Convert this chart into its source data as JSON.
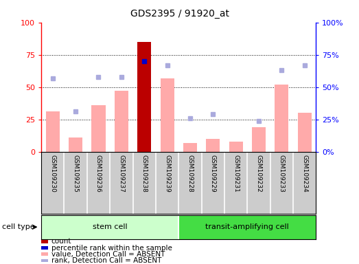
{
  "title": "GDS2395 / 91920_at",
  "samples": [
    "GSM109230",
    "GSM109235",
    "GSM109236",
    "GSM109237",
    "GSM109238",
    "GSM109239",
    "GSM109228",
    "GSM109229",
    "GSM109231",
    "GSM109232",
    "GSM109233",
    "GSM109234"
  ],
  "cell_groups": [
    {
      "label": "stem cell",
      "start": 0,
      "end": 6,
      "color": "#ccffcc"
    },
    {
      "label": "transit-amplifying cell",
      "start": 6,
      "end": 12,
      "color": "#44dd44"
    }
  ],
  "bar_values": [
    31,
    11,
    36,
    47,
    85,
    57,
    7,
    10,
    8,
    19,
    52,
    30
  ],
  "bar_colors": [
    "#ffaaaa",
    "#ffaaaa",
    "#ffaaaa",
    "#ffaaaa",
    "#bb0000",
    "#ffaaaa",
    "#ffaaaa",
    "#ffaaaa",
    "#ffaaaa",
    "#ffaaaa",
    "#ffaaaa",
    "#ffaaaa"
  ],
  "rank_dots": [
    57,
    31,
    58,
    58,
    70,
    67,
    26,
    29,
    null,
    24,
    63,
    67
  ],
  "rank_dot_color_present": "#0000cc",
  "rank_dot_color_absent": "#aaaadd",
  "rank_present_indices": [
    4
  ],
  "ylim": [
    0,
    100
  ],
  "yticks": [
    0,
    25,
    50,
    75,
    100
  ],
  "grid_values": [
    25,
    50,
    75
  ],
  "legend_items": [
    {
      "color": "#bb0000",
      "label": "count"
    },
    {
      "color": "#0000cc",
      "label": "percentile rank within the sample"
    },
    {
      "color": "#ffaaaa",
      "label": "value, Detection Call = ABSENT"
    },
    {
      "color": "#aaaadd",
      "label": "rank, Detection Call = ABSENT"
    }
  ],
  "bar_width": 0.6,
  "tick_label_color": "#cccccc",
  "cell_type_label": "cell type"
}
